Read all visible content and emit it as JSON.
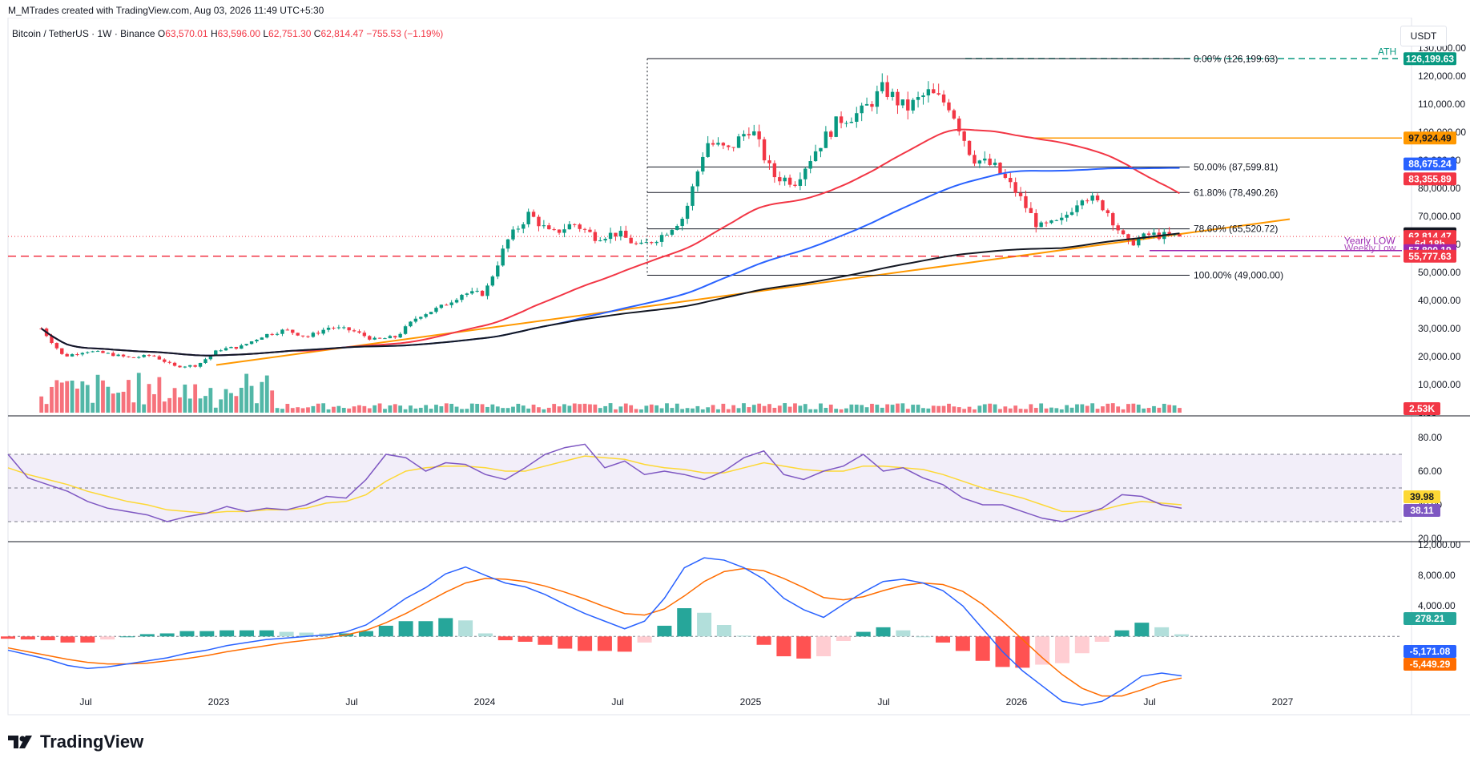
{
  "header": {
    "credit": "M_MTrades created with TradingView.com, Aug 03, 2026 11:49 UTC+5:30",
    "symbol": "Bitcoin / TetherUS · 1W · Binance",
    "o_label": "O",
    "o": "63,570.01",
    "h_label": "H",
    "h": "63,596.00",
    "l_label": "L",
    "l": "62,751.30",
    "c_label": "C",
    "c": "62,814.47",
    "change": "−755.53 (−1.19%)",
    "currency_button": "USDT"
  },
  "brand": {
    "name": "TradingView",
    "icon": "tradingview-logo-icon"
  },
  "colors": {
    "up": "#089981",
    "down": "#f23645",
    "ema_red": "#f23645",
    "ema_blue": "#2962ff",
    "ma_black": "#131722",
    "trend_orange": "#ff9800",
    "rsi": "#7e57c2",
    "rsi_ma": "#fdd835",
    "macd": "#2962ff",
    "signal": "#ff6d00",
    "ath_green": "#089981",
    "yearly_low": "#9c27b0"
  },
  "chart_data": [
    {
      "type": "candlestick",
      "title": "Bitcoin / TetherUS · 1W · Binance",
      "ylim": [
        0,
        130000
      ],
      "y_ticks": [
        "0.00",
        "10,000.00",
        "20,000.00",
        "30,000.00",
        "40,000.00",
        "50,000.00",
        "60,000.00",
        "70,000.00",
        "80,000.00",
        "90,000.00",
        "100,000.00",
        "110,000.00",
        "120,000.00",
        "130,000.00"
      ],
      "x_ticks": [
        "Jul",
        "2023",
        "Jul",
        "2024",
        "Jul",
        "2025",
        "Jul",
        "2026",
        "Jul",
        "2027"
      ],
      "last": {
        "open": 63570.01,
        "high": 63596.0,
        "low": 62751.3,
        "close": 62814.47
      },
      "price_path": [
        [
          "2022-05",
          30000
        ],
        [
          "2022-06",
          20000
        ],
        [
          "2022-07",
          22000
        ],
        [
          "2022-08",
          21000
        ],
        [
          "2022-09",
          19500
        ],
        [
          "2022-10",
          20500
        ],
        [
          "2022-11",
          16500
        ],
        [
          "2022-12",
          16800
        ],
        [
          "2023-01",
          22500
        ],
        [
          "2023-02",
          23500
        ],
        [
          "2023-03",
          27500
        ],
        [
          "2023-04",
          29500
        ],
        [
          "2023-05",
          27000
        ],
        [
          "2023-06",
          30500
        ],
        [
          "2023-07",
          29300
        ],
        [
          "2023-08",
          26000
        ],
        [
          "2023-09",
          27000
        ],
        [
          "2023-10",
          34500
        ],
        [
          "2023-11",
          37500
        ],
        [
          "2023-12",
          42500
        ],
        [
          "2024-01",
          42500
        ],
        [
          "2024-02",
          61000
        ],
        [
          "2024-03",
          71000
        ],
        [
          "2024-04",
          63500
        ],
        [
          "2024-05",
          67500
        ],
        [
          "2024-06",
          62700
        ],
        [
          "2024-07",
          64000
        ],
        [
          "2024-08",
          59000
        ],
        [
          "2024-09",
          63300
        ],
        [
          "2024-10",
          70000
        ],
        [
          "2024-11",
          96500
        ],
        [
          "2024-12",
          93500
        ],
        [
          "2025-01",
          102000
        ],
        [
          "2025-02",
          84500
        ],
        [
          "2025-03",
          82500
        ],
        [
          "2025-04",
          94500
        ],
        [
          "2025-05",
          104500
        ],
        [
          "2025-06",
          107000
        ],
        [
          "2025-07",
          115700
        ],
        [
          "2025-08",
          108200
        ],
        [
          "2025-09",
          114000
        ],
        [
          "2025-10",
          109500
        ],
        [
          "2025-11",
          91000
        ],
        [
          "2025-12",
          87600
        ],
        [
          "2026-01",
          78500
        ],
        [
          "2026-02",
          66000
        ],
        [
          "2026-03",
          68000
        ],
        [
          "2026-04",
          78000
        ],
        [
          "2026-05",
          73000
        ],
        [
          "2026-06",
          60000
        ],
        [
          "2026-07",
          63500
        ],
        [
          "2026-08",
          62814.47
        ]
      ],
      "fibonacci": [
        {
          "label": "0.00% (126,199.63)",
          "value": 126199.63
        },
        {
          "label": "50.00% (87,599.81)",
          "value": 87599.81
        },
        {
          "label": "61.80% (78,490.26)",
          "value": 78490.26
        },
        {
          "label": "78.60% (65,520.72)",
          "value": 65520.72
        },
        {
          "label": "100.00% (49,000.00)",
          "value": 49000.0
        }
      ],
      "annotations": {
        "ath_label": "ATH",
        "yearly_low_label": "Yearly LOW",
        "weekly_low_label": "Weekly Low"
      },
      "price_labels": [
        {
          "text": "126,199.63",
          "value": 126199.63,
          "color": "#089981"
        },
        {
          "text": "97,924.49",
          "value": 97924.49,
          "color": "#ff9800",
          "text_color": "#131722"
        },
        {
          "text": "88,675.24",
          "value": 88675.24,
          "color": "#2962ff"
        },
        {
          "text": "83,355.89",
          "value": 83355.89,
          "color": "#f23645"
        },
        {
          "text": "63,769.96",
          "value": 63769.96,
          "color": "#131722"
        },
        {
          "text": "62,814.47",
          "value": 62814.47,
          "color": "#f23645"
        },
        {
          "text": "6d 18h",
          "value": 60200,
          "color": "#f23645"
        },
        {
          "text": "57,800.19",
          "value": 57800.19,
          "color": "#9c27b0"
        },
        {
          "text": "55,777.63",
          "value": 55777.63,
          "color": "#f23645"
        }
      ],
      "volume_label": "2.53K"
    },
    {
      "type": "line",
      "title": "RSI",
      "ylim": [
        20,
        90
      ],
      "y_ticks": [
        "20.00",
        "40.00",
        "60.00",
        "80.00"
      ],
      "bands": [
        30,
        50,
        70
      ],
      "series": [
        {
          "values": [
            70,
            56,
            52,
            48,
            42,
            38,
            36,
            34,
            30,
            33,
            35,
            39,
            36,
            38,
            37,
            40,
            45,
            44,
            55,
            70,
            68,
            60,
            65,
            64,
            58,
            55,
            62,
            70,
            74,
            76,
            62,
            66,
            58,
            60,
            58,
            55,
            60,
            68,
            72,
            58,
            55,
            60,
            63,
            70,
            60,
            62,
            56,
            52,
            44,
            40,
            40,
            36,
            32,
            30,
            34,
            38,
            46,
            45,
            40,
            38
          ]
        },
        {
          "values": [
            62,
            58,
            55,
            52,
            48,
            45,
            42,
            40,
            37,
            36,
            35,
            36,
            36,
            37,
            37,
            38,
            41,
            42,
            46,
            54,
            60,
            62,
            63,
            63,
            62,
            60,
            60,
            63,
            66,
            69,
            68,
            67,
            64,
            62,
            61,
            59,
            59,
            62,
            65,
            63,
            61,
            60,
            60,
            63,
            63,
            62,
            61,
            58,
            54,
            50,
            47,
            44,
            40,
            36,
            36,
            37,
            40,
            42,
            41,
            40
          ]
        }
      ],
      "value_labels": [
        "39.98",
        "38.11"
      ]
    },
    {
      "type": "line",
      "title": "MACD",
      "ylim": [
        -9000,
        12000
      ],
      "y_ticks": [
        "4,000.00",
        "8,000.00",
        "12,000.00"
      ],
      "series": [
        {
          "values": [
            -1800,
            -2400,
            -3000,
            -3800,
            -4200,
            -4000,
            -3600,
            -3200,
            -2800,
            -2200,
            -1800,
            -1200,
            -800,
            -400,
            -200,
            0,
            200,
            600,
            1500,
            3200,
            5000,
            6400,
            8200,
            9100,
            8000,
            7000,
            6500,
            5500,
            4200,
            3000,
            2000,
            1000,
            2000,
            5000,
            9000,
            10300,
            10000,
            9000,
            7500,
            5000,
            3500,
            2500,
            4200,
            5800,
            7200,
            7500,
            7000,
            6000,
            4000,
            1000,
            -2000,
            -4500,
            -6500,
            -8500,
            -9000,
            -8500,
            -7000,
            -5200,
            -4800,
            -5171.08
          ]
        },
        {
          "values": [
            -1500,
            -2000,
            -2500,
            -3000,
            -3400,
            -3600,
            -3600,
            -3500,
            -3200,
            -2900,
            -2500,
            -2000,
            -1600,
            -1200,
            -800,
            -500,
            -200,
            200,
            800,
            1800,
            3000,
            4400,
            5800,
            7000,
            7600,
            7500,
            7200,
            6600,
            5800,
            4900,
            3900,
            3000,
            2800,
            3600,
            5300,
            7200,
            8500,
            8900,
            8600,
            7600,
            6400,
            5100,
            4800,
            5200,
            6000,
            6700,
            7000,
            6800,
            5900,
            4200,
            2000,
            -400,
            -2800,
            -5000,
            -6800,
            -7800,
            -7800,
            -7000,
            -6000,
            -5449.29
          ]
        }
      ],
      "histogram": [
        -300,
        -400,
        -500,
        -800,
        -800,
        -400,
        0,
        300,
        400,
        700,
        700,
        800,
        800,
        800,
        600,
        500,
        400,
        400,
        700,
        1400,
        2000,
        2000,
        2400,
        2100,
        400,
        -500,
        -700,
        -1100,
        -1600,
        -1900,
        -1900,
        -2000,
        -800,
        1400,
        3700,
        3100,
        1500,
        100,
        -1100,
        -2600,
        -2900,
        -2600,
        -600,
        600,
        1200,
        800,
        0,
        -800,
        -1900,
        -3200,
        -4000,
        -4100,
        -3700,
        -3500,
        -2200,
        -700,
        800,
        1800,
        1200,
        278.21
      ],
      "value_labels": [
        "278.21",
        "-5,171.08",
        "-5,449.29"
      ]
    }
  ]
}
